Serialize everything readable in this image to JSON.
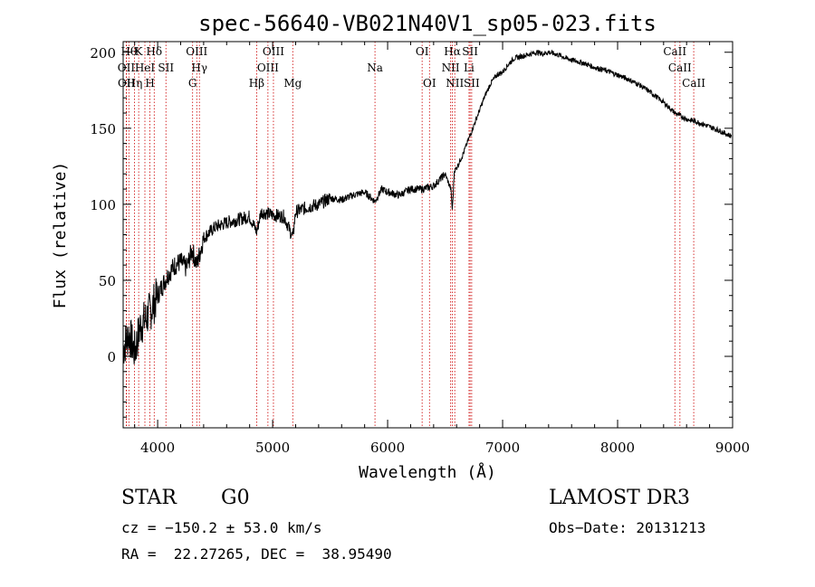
{
  "chart_data": {
    "type": "line",
    "title": "spec-56640-VB021N40V1_sp05-023.fits",
    "xlabel": "Wavelength (Å)",
    "ylabel": "Flux (relative)",
    "xlim": [
      3700,
      9000
    ],
    "ylim": [
      -47,
      207
    ],
    "xticks": [
      4000,
      5000,
      6000,
      7000,
      8000,
      9000
    ],
    "yticks": [
      0,
      50,
      100,
      150,
      200
    ],
    "series": [
      {
        "name": "flux",
        "x": [
          3700,
          3750,
          3800,
          3850,
          3900,
          3950,
          4000,
          4050,
          4100,
          4150,
          4200,
          4250,
          4300,
          4340,
          4400,
          4500,
          4600,
          4700,
          4800,
          4861,
          4900,
          5000,
          5100,
          5175,
          5200,
          5300,
          5400,
          5500,
          5600,
          5700,
          5800,
          5890,
          5950,
          6000,
          6100,
          6200,
          6300,
          6400,
          6500,
          6550,
          6563,
          6580,
          6600,
          6650,
          6700,
          6750,
          6800,
          6850,
          6900,
          6950,
          7000,
          7050,
          7100,
          7150,
          7200,
          7250,
          7300,
          7350,
          7400,
          7450,
          7500,
          7550,
          7600,
          7700,
          7800,
          7900,
          8000,
          8100,
          8200,
          8300,
          8400,
          8500,
          8600,
          8700,
          8800,
          8900,
          8950,
          8990
        ],
        "values": [
          5,
          15,
          3,
          20,
          25,
          32,
          40,
          48,
          55,
          60,
          62,
          58,
          70,
          60,
          78,
          85,
          88,
          90,
          92,
          82,
          95,
          93,
          92,
          78,
          95,
          98,
          100,
          104,
          103,
          106,
          108,
          102,
          110,
          108,
          106,
          110,
          110,
          112,
          120,
          110,
          96,
          122,
          124,
          132,
          142,
          152,
          162,
          172,
          180,
          185,
          187,
          192,
          196,
          197,
          198,
          199,
          200,
          199,
          200,
          199,
          198,
          196,
          195,
          193,
          190,
          188,
          185,
          182,
          178,
          173,
          167,
          160,
          156,
          154,
          151,
          148,
          146,
          145
        ]
      }
    ],
    "lines": [
      {
        "wl": 3750,
        "label": "Hθ",
        "row": 0
      },
      {
        "wl": 3835,
        "label": "K",
        "row": 0
      },
      {
        "wl": 3970,
        "label": "Hδ",
        "row": 0
      },
      {
        "wl": 4340,
        "label": "OIII",
        "row": 0
      },
      {
        "wl": 5007,
        "label": "OIII",
        "row": 0
      },
      {
        "wl": 6300,
        "label": "OI",
        "row": 0
      },
      {
        "wl": 6563,
        "label": "Hα",
        "row": 0
      },
      {
        "wl": 6717,
        "label": "SII",
        "row": 0
      },
      {
        "wl": 8498,
        "label": "CaII",
        "row": 0
      },
      {
        "wl": 3727,
        "label": "OII",
        "row": 1
      },
      {
        "wl": 3889,
        "label": "HeI",
        "row": 1
      },
      {
        "wl": 4072,
        "label": "SII",
        "row": 1
      },
      {
        "wl": 4363,
        "label": "Hγ",
        "row": 1
      },
      {
        "wl": 4959,
        "label": "OIII",
        "row": 1
      },
      {
        "wl": 5890,
        "label": "Na",
        "row": 1
      },
      {
        "wl": 6548,
        "label": "NII",
        "row": 1
      },
      {
        "wl": 6708,
        "label": "Li",
        "row": 1
      },
      {
        "wl": 8542,
        "label": "CaII",
        "row": 1
      },
      {
        "wl": 3729,
        "label": "OII",
        "row": 2
      },
      {
        "wl": 3798,
        "label": "Hη",
        "row": 2
      },
      {
        "wl": 3933,
        "label": "H",
        "row": 2
      },
      {
        "wl": 4304,
        "label": "G",
        "row": 2
      },
      {
        "wl": 4861,
        "label": "Hβ",
        "row": 2
      },
      {
        "wl": 5175,
        "label": "Mg",
        "row": 2
      },
      {
        "wl": 6364,
        "label": "OI",
        "row": 2
      },
      {
        "wl": 6584,
        "label": "NII",
        "row": 2
      },
      {
        "wl": 6731,
        "label": "SII",
        "row": 2
      },
      {
        "wl": 8662,
        "label": "CaII",
        "row": 2
      }
    ]
  },
  "info": {
    "object_class": "STAR",
    "subclass": "G0",
    "survey": "LAMOST DR3",
    "cz": "cz = −150.2 ± 53.0 km/s",
    "obs_date": "Obs−Date: 20131213",
    "coords": "RA =  22.27265, DEC =  38.95490"
  },
  "colors": {
    "spectrum": "#000000",
    "line_markers": "#cc0000"
  }
}
